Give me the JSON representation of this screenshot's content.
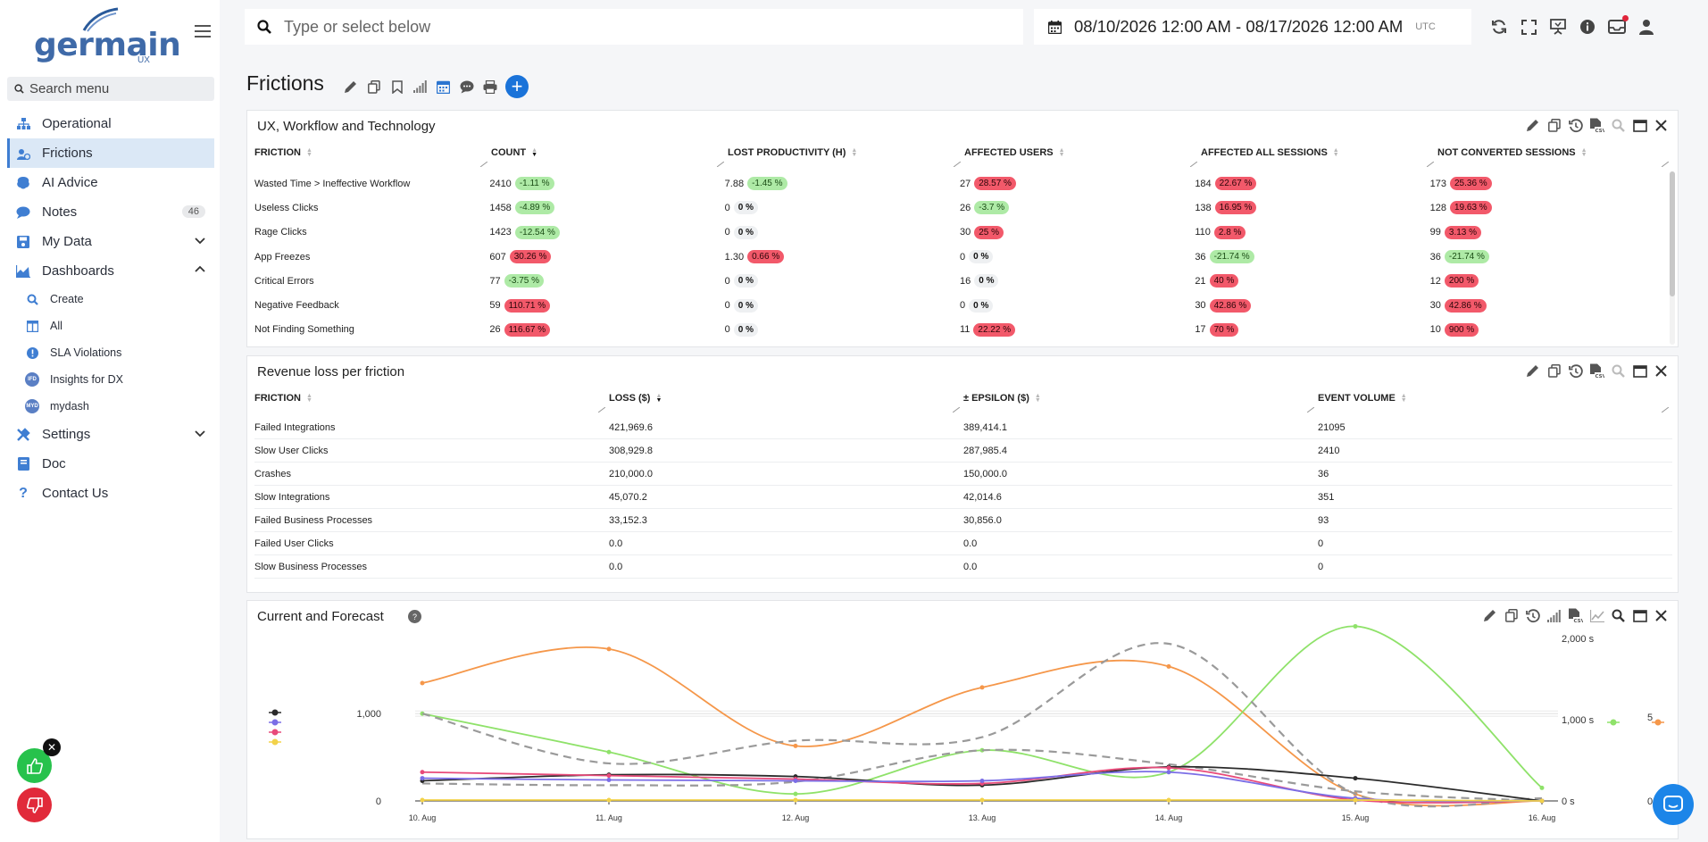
{
  "app": {
    "logo_text": "germain",
    "logo_sub": "UX"
  },
  "sidebar": {
    "search_placeholder": "Search menu",
    "items": [
      {
        "label": "Operational",
        "icon": "sitemap-icon"
      },
      {
        "label": "Frictions",
        "icon": "frictions-icon",
        "active": true
      },
      {
        "label": "AI Advice",
        "icon": "brain-icon"
      },
      {
        "label": "Notes",
        "icon": "comment-icon",
        "badge": "46"
      },
      {
        "label": "My Data",
        "icon": "save-icon"
      },
      {
        "label": "Dashboards",
        "icon": "chart-icon"
      }
    ],
    "sub_items": [
      {
        "label": "Create",
        "icon": "search-icon"
      },
      {
        "label": "All",
        "icon": "columns-icon"
      },
      {
        "label": "SLA Violations",
        "icon": "alert-icon"
      },
      {
        "label": "Insights for DX",
        "icon": "ifd-badge",
        "badge_text": "IFD"
      },
      {
        "label": "mydash",
        "icon": "myd-badge",
        "badge_text": "MYD"
      }
    ],
    "bottom_items": [
      {
        "label": "Settings",
        "icon": "tools-icon"
      },
      {
        "label": "Doc",
        "icon": "book-icon"
      },
      {
        "label": "Contact Us",
        "icon": "question-icon"
      }
    ]
  },
  "topbar": {
    "search_placeholder": "Type or select below",
    "date_range": "08/10/2026 12:00 AM - 08/17/2026 12:00 AM",
    "timezone": "UTC"
  },
  "page": {
    "title": "Frictions"
  },
  "ux_panel": {
    "title": "UX, Workflow and Technology",
    "columns": [
      "FRICTION",
      "COUNT",
      "LOST PRODUCTIVITY (H)",
      "AFFECTED USERS",
      "AFFECTED ALL SESSIONS",
      "NOT CONVERTED SESSIONS"
    ],
    "rows": [
      {
        "friction": "Wasted Time > Ineffective Workflow",
        "cells": [
          [
            "2410",
            "-1.11 %",
            "green"
          ],
          [
            "7.88",
            "-1.45 %",
            "green"
          ],
          [
            "27",
            "28.57 %",
            "red"
          ],
          [
            "184",
            "22.67 %",
            "red"
          ],
          [
            "173",
            "25.36 %",
            "red"
          ]
        ]
      },
      {
        "friction": "Useless Clicks",
        "cells": [
          [
            "1458",
            "-4.89 %",
            "green"
          ],
          [
            "0",
            "0 %",
            "gray"
          ],
          [
            "26",
            "-3.7 %",
            "green"
          ],
          [
            "138",
            "16.95 %",
            "red"
          ],
          [
            "128",
            "19.63 %",
            "red"
          ]
        ]
      },
      {
        "friction": "Rage Clicks",
        "cells": [
          [
            "1423",
            "-12.54 %",
            "green"
          ],
          [
            "0",
            "0 %",
            "gray"
          ],
          [
            "30",
            "25 %",
            "red"
          ],
          [
            "110",
            "2.8 %",
            "red"
          ],
          [
            "99",
            "3.13 %",
            "red"
          ]
        ]
      },
      {
        "friction": "App Freezes",
        "cells": [
          [
            "607",
            "30.26 %",
            "red"
          ],
          [
            "1.30",
            "0.66 %",
            "red"
          ],
          [
            "0",
            "0 %",
            "gray"
          ],
          [
            "36",
            "-21.74 %",
            "green"
          ],
          [
            "36",
            "-21.74 %",
            "green"
          ]
        ]
      },
      {
        "friction": "Critical Errors",
        "cells": [
          [
            "77",
            "-3.75 %",
            "green"
          ],
          [
            "0",
            "0 %",
            "gray"
          ],
          [
            "16",
            "0 %",
            "gray"
          ],
          [
            "21",
            "40 %",
            "red"
          ],
          [
            "12",
            "200 %",
            "red"
          ]
        ]
      },
      {
        "friction": "Negative Feedback",
        "cells": [
          [
            "59",
            "110.71 %",
            "red"
          ],
          [
            "0",
            "0 %",
            "gray"
          ],
          [
            "0",
            "0 %",
            "gray"
          ],
          [
            "30",
            "42.86 %",
            "red"
          ],
          [
            "30",
            "42.86 %",
            "red"
          ]
        ]
      },
      {
        "friction": "Not Finding Something",
        "cells": [
          [
            "26",
            "116.67 %",
            "red"
          ],
          [
            "0",
            "0 %",
            "gray"
          ],
          [
            "11",
            "22.22 %",
            "red"
          ],
          [
            "17",
            "70 %",
            "red"
          ],
          [
            "10",
            "900 %",
            "red"
          ]
        ]
      }
    ]
  },
  "rev_panel": {
    "title": "Revenue loss per friction",
    "columns": [
      "FRICTION",
      "LOSS ($)",
      "± EPSILON ($)",
      "EVENT VOLUME"
    ],
    "rows": [
      [
        "Failed Integrations",
        "421,969.6",
        "389,414.1",
        "21095"
      ],
      [
        "Slow User Clicks",
        "308,929.8",
        "287,985.4",
        "2410"
      ],
      [
        "Crashes",
        "210,000.0",
        "150,000.0",
        "36"
      ],
      [
        "Slow Integrations",
        "45,070.2",
        "42,014.6",
        "351"
      ],
      [
        "Failed Business Processes",
        "33,152.3",
        "30,856.0",
        "93"
      ],
      [
        "Failed User Clicks",
        "0.0",
        "0.0",
        "0"
      ],
      [
        "Slow Business Processes",
        "0.0",
        "0.0",
        "0"
      ]
    ]
  },
  "forecast_panel": {
    "title": "Current and Forecast"
  },
  "chart_data": {
    "type": "line",
    "title": "Current and Forecast",
    "x": [
      "10. Aug",
      "11. Aug",
      "12. Aug",
      "13. Aug",
      "14. Aug",
      "15. Aug",
      "16. Aug"
    ],
    "y_left": {
      "ticks": [
        "0",
        "1,000"
      ],
      "range": [
        0,
        1800
      ]
    },
    "y_right_1": {
      "ticks": [
        "0 s",
        "1,000 s",
        "2,000 s"
      ],
      "range": [
        0,
        2000
      ]
    },
    "y_right_2": {
      "ticks": [
        "0",
        "5"
      ],
      "range": [
        0,
        10
      ]
    },
    "colors": {
      "orange": "#f5974a",
      "green": "#8fe26a",
      "gray": "#9a9a9a",
      "black": "#2b2b2b",
      "pink": "#e84a7a",
      "purple": "#7b6ee6",
      "yellow": "#f2d24a"
    },
    "series": [
      {
        "color": "orange",
        "values": [
          1350,
          1740,
          630,
          1300,
          1540,
          80,
          0
        ]
      },
      {
        "color": "green",
        "values": [
          1000,
          560,
          80,
          580,
          330,
          2000,
          150
        ]
      },
      {
        "color": "gray",
        "dashed": true,
        "values": [
          1000,
          430,
          690,
          730,
          1800,
          80,
          30
        ]
      },
      {
        "color": "gray",
        "dashed": true,
        "values": [
          200,
          180,
          220,
          580,
          420,
          110,
          0
        ]
      },
      {
        "color": "black",
        "values": [
          230,
          300,
          280,
          180,
          390,
          260,
          0
        ]
      },
      {
        "color": "pink",
        "values": [
          330,
          290,
          250,
          200,
          380,
          10,
          0
        ]
      },
      {
        "color": "purple",
        "values": [
          260,
          240,
          230,
          230,
          330,
          30,
          0
        ]
      },
      {
        "color": "yellow",
        "values": [
          10,
          10,
          10,
          10,
          10,
          10,
          0
        ]
      }
    ],
    "legend_colors": [
      "black",
      "purple",
      "pink",
      "yellow"
    ],
    "right_legend_colors": [
      "green",
      "orange"
    ]
  }
}
